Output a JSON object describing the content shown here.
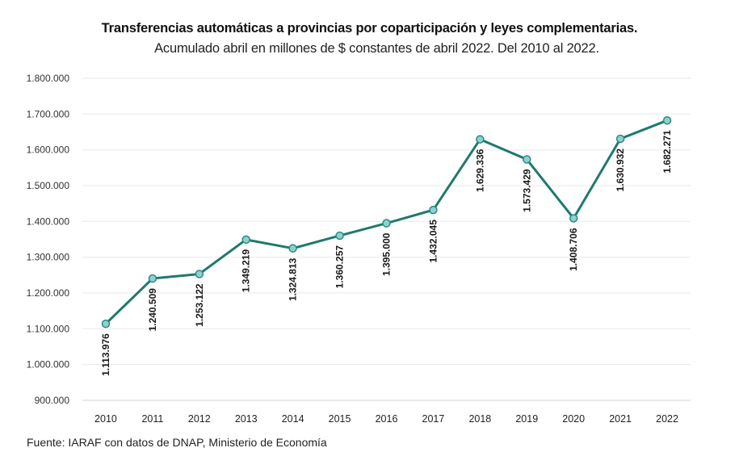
{
  "chart_data": {
    "type": "line",
    "title": "Transferencias automáticas a provincias por coparticipación y leyes complementarias.",
    "subtitle": "Acumulado abril en millones de $ constantes de abril 2022. Del 2010 al 2022.",
    "xlabel": "",
    "ylabel": "",
    "categories": [
      "2010",
      "2011",
      "2012",
      "2013",
      "2014",
      "2015",
      "2016",
      "2017",
      "2018",
      "2019",
      "2020",
      "2021",
      "2022"
    ],
    "series": [
      {
        "name": "Transferencias automáticas",
        "values": [
          1113976,
          1240509,
          1253122,
          1349219,
          1324813,
          1360257,
          1395000,
          1432045,
          1629336,
          1573429,
          1408706,
          1630932,
          1682271
        ],
        "data_labels": [
          "1.113.976",
          "1.240.509",
          "1.253.122",
          "1.349.219",
          "1.324.813",
          "1.360.257",
          "1.395.000",
          "1.432.045",
          "1.629.336",
          "1.573.429",
          "1.408.706",
          "1.630.932",
          "1.682.271"
        ],
        "line_color": "#1f7a6c",
        "marker_fill": "#8fd0cf",
        "marker_stroke": "#2a8a80"
      }
    ],
    "ylim": [
      900000,
      1800000
    ],
    "yticks": [
      900000,
      1000000,
      1100000,
      1200000,
      1300000,
      1400000,
      1500000,
      1600000,
      1700000,
      1800000
    ],
    "ytick_labels": [
      "900.000",
      "1.000.000",
      "1.100.000",
      "1.200.000",
      "1.300.000",
      "1.400.000",
      "1.500.000",
      "1.600.000",
      "1.700.000",
      "1.800.000"
    ],
    "grid": true,
    "grid_color": "#ececec",
    "legend": "none",
    "data_label_orientation": "vertical"
  },
  "source": "Fuente: IARAF con datos de DNAP, Ministerio de Economía"
}
